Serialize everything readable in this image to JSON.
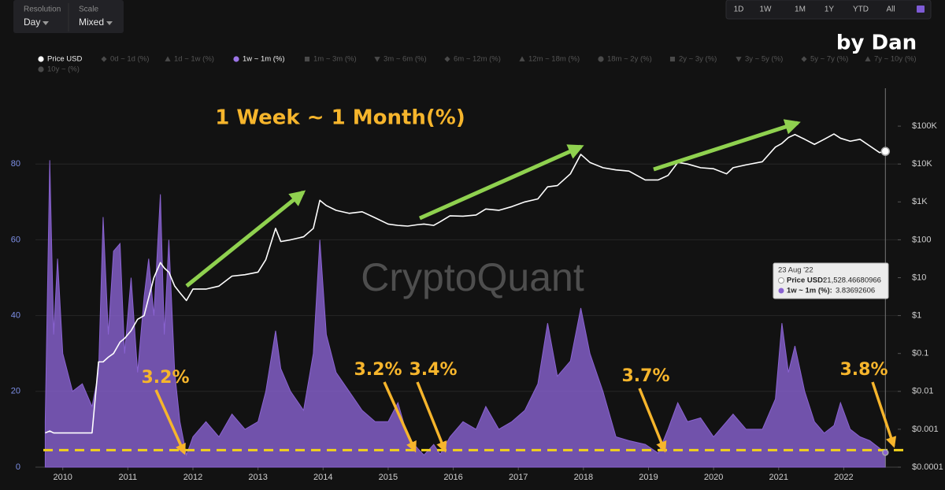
{
  "controls": {
    "resolution_label": "Resolution",
    "resolution": "Day",
    "scale_label": "Scale",
    "scale": "Mixed"
  },
  "range_buttons": [
    "1D",
    "1W",
    "1M",
    "1Y",
    "YTD",
    "All"
  ],
  "author": "by Dan",
  "watermark": "CryptoQuant",
  "tooltip": {
    "date": "23 Aug '22",
    "price_label": "Price USD:",
    "price_value": "21,528.46680966",
    "series_label": "1w ~ 1m (%):",
    "series_value": "3.83692606"
  },
  "chart_data": {
    "type": "line",
    "title": "1 Week ~ 1 Month(%)",
    "annotations": [
      "3.2%",
      "3.2%",
      "3.4%",
      "3.7%",
      "3.8%"
    ],
    "x": [
      2009.73,
      2009.8,
      2009.86,
      2009.92,
      2010.0,
      2010.15,
      2010.3,
      2010.45,
      2010.55,
      2010.62,
      2010.7,
      2010.78,
      2010.88,
      2010.95,
      2011.05,
      2011.15,
      2011.25,
      2011.32,
      2011.4,
      2011.5,
      2011.56,
      2011.63,
      2011.72,
      2011.8,
      2011.9,
      2012.0,
      2012.2,
      2012.4,
      2012.6,
      2012.8,
      2013.0,
      2013.12,
      2013.27,
      2013.35,
      2013.5,
      2013.7,
      2013.85,
      2013.95,
      2014.05,
      2014.2,
      2014.4,
      2014.6,
      2014.8,
      2015.0,
      2015.15,
      2015.3,
      2015.45,
      2015.55,
      2015.7,
      2015.8,
      2015.95,
      2016.15,
      2016.35,
      2016.5,
      2016.7,
      2016.9,
      2017.1,
      2017.3,
      2017.45,
      2017.6,
      2017.8,
      2017.96,
      2018.1,
      2018.3,
      2018.5,
      2018.7,
      2018.95,
      2019.15,
      2019.3,
      2019.45,
      2019.6,
      2019.8,
      2020.0,
      2020.2,
      2020.3,
      2020.5,
      2020.75,
      2020.95,
      2021.05,
      2021.15,
      2021.25,
      2021.4,
      2021.55,
      2021.7,
      2021.85,
      2021.95,
      2022.1,
      2022.25,
      2022.4,
      2022.55,
      2022.64
    ],
    "series": [
      {
        "name": "Price USD",
        "type": "line",
        "axis": "y2",
        "color": "#ffffff",
        "shape": "circle",
        "values": [
          0.0008,
          0.0009,
          0.0008,
          0.0008,
          0.0008,
          0.0008,
          0.0008,
          0.0008,
          0.06,
          0.06,
          0.08,
          0.1,
          0.2,
          0.25,
          0.4,
          0.8,
          1,
          3,
          10,
          25,
          18,
          14,
          6,
          4,
          2.5,
          5,
          5,
          6,
          11,
          12,
          14,
          30,
          200,
          90,
          100,
          120,
          200,
          1100,
          800,
          600,
          500,
          550,
          380,
          260,
          240,
          230,
          250,
          260,
          240,
          300,
          430,
          420,
          450,
          650,
          600,
          750,
          1000,
          1200,
          2500,
          2700,
          5500,
          18000,
          11000,
          8000,
          7000,
          6500,
          3800,
          3800,
          5000,
          11000,
          10000,
          8000,
          7500,
          5500,
          8000,
          9500,
          11500,
          28000,
          35000,
          50000,
          60000,
          45000,
          33000,
          45000,
          62000,
          48000,
          40000,
          45000,
          30000,
          20000,
          21528.47
        ]
      },
      {
        "name": "1w ~ 1m (%)",
        "type": "area",
        "color": "#8a63d2",
        "shape": "circle",
        "values": [
          12,
          81,
          35,
          55,
          30,
          20,
          22,
          16,
          25,
          66,
          35,
          57,
          59,
          30,
          50,
          25,
          45,
          55,
          40,
          72,
          35,
          60,
          25,
          12,
          3.2,
          8,
          12,
          8,
          14,
          10,
          12,
          20,
          36,
          26,
          20,
          15,
          30,
          60,
          35,
          25,
          20,
          15,
          12,
          12,
          17,
          8,
          5,
          3.2,
          6,
          3.4,
          8,
          12,
          10,
          16,
          10,
          12,
          15,
          22,
          38,
          24,
          28,
          42,
          30,
          20,
          8,
          7,
          6,
          3.7,
          10,
          17,
          12,
          13,
          8,
          12,
          14,
          10,
          10,
          18,
          38,
          25,
          32,
          20,
          12,
          9,
          11,
          17,
          10,
          8,
          7,
          5,
          3.84
        ]
      }
    ],
    "other_legend_entries": [
      {
        "name": "0d ~ 1d (%)",
        "shape": "diamond"
      },
      {
        "name": "1d ~ 1w (%)",
        "shape": "triangle"
      },
      {
        "name": "1m ~ 3m (%)",
        "shape": "square"
      },
      {
        "name": "3m ~ 6m (%)",
        "shape": "triangle-down"
      },
      {
        "name": "6m ~ 12m (%)",
        "shape": "diamond"
      },
      {
        "name": "12m ~ 18m (%)",
        "shape": "triangle"
      },
      {
        "name": "18m ~ 2y (%)",
        "shape": "circle"
      },
      {
        "name": "2y ~ 3y (%)",
        "shape": "square"
      },
      {
        "name": "3y ~ 5y (%)",
        "shape": "triangle-down"
      },
      {
        "name": "5y ~ 7y (%)",
        "shape": "diamond"
      },
      {
        "name": "7y ~ 10y (%)",
        "shape": "triangle"
      },
      {
        "name": "10y ~ (%)",
        "shape": "circle"
      }
    ],
    "reference_line": 4.5,
    "reference_color": "#f2d21b",
    "xlim": [
      2009.58,
      2022.83
    ],
    "xticks": [
      2010,
      2011,
      2012,
      2013,
      2014,
      2015,
      2016,
      2017,
      2018,
      2019,
      2020,
      2021,
      2022
    ],
    "ylim": [
      0,
      100
    ],
    "yticks": [
      0,
      20,
      40,
      60,
      80
    ],
    "y2lim": [
      0.0001,
      1000000
    ],
    "y2log": true,
    "y2ticks": [
      {
        "value": 0.0001,
        "label": "$0.0001"
      },
      {
        "value": 0.001,
        "label": "$0.001"
      },
      {
        "value": 0.01,
        "label": "$0.01"
      },
      {
        "value": 0.1,
        "label": "$0.1"
      },
      {
        "value": 1,
        "label": "$1"
      },
      {
        "value": 10,
        "label": "$10"
      },
      {
        "value": 100,
        "label": "$100"
      },
      {
        "value": 1000,
        "label": "$1K"
      },
      {
        "value": 10000,
        "label": "$10K"
      },
      {
        "value": 100000,
        "label": "$100K"
      }
    ],
    "grid": true
  }
}
